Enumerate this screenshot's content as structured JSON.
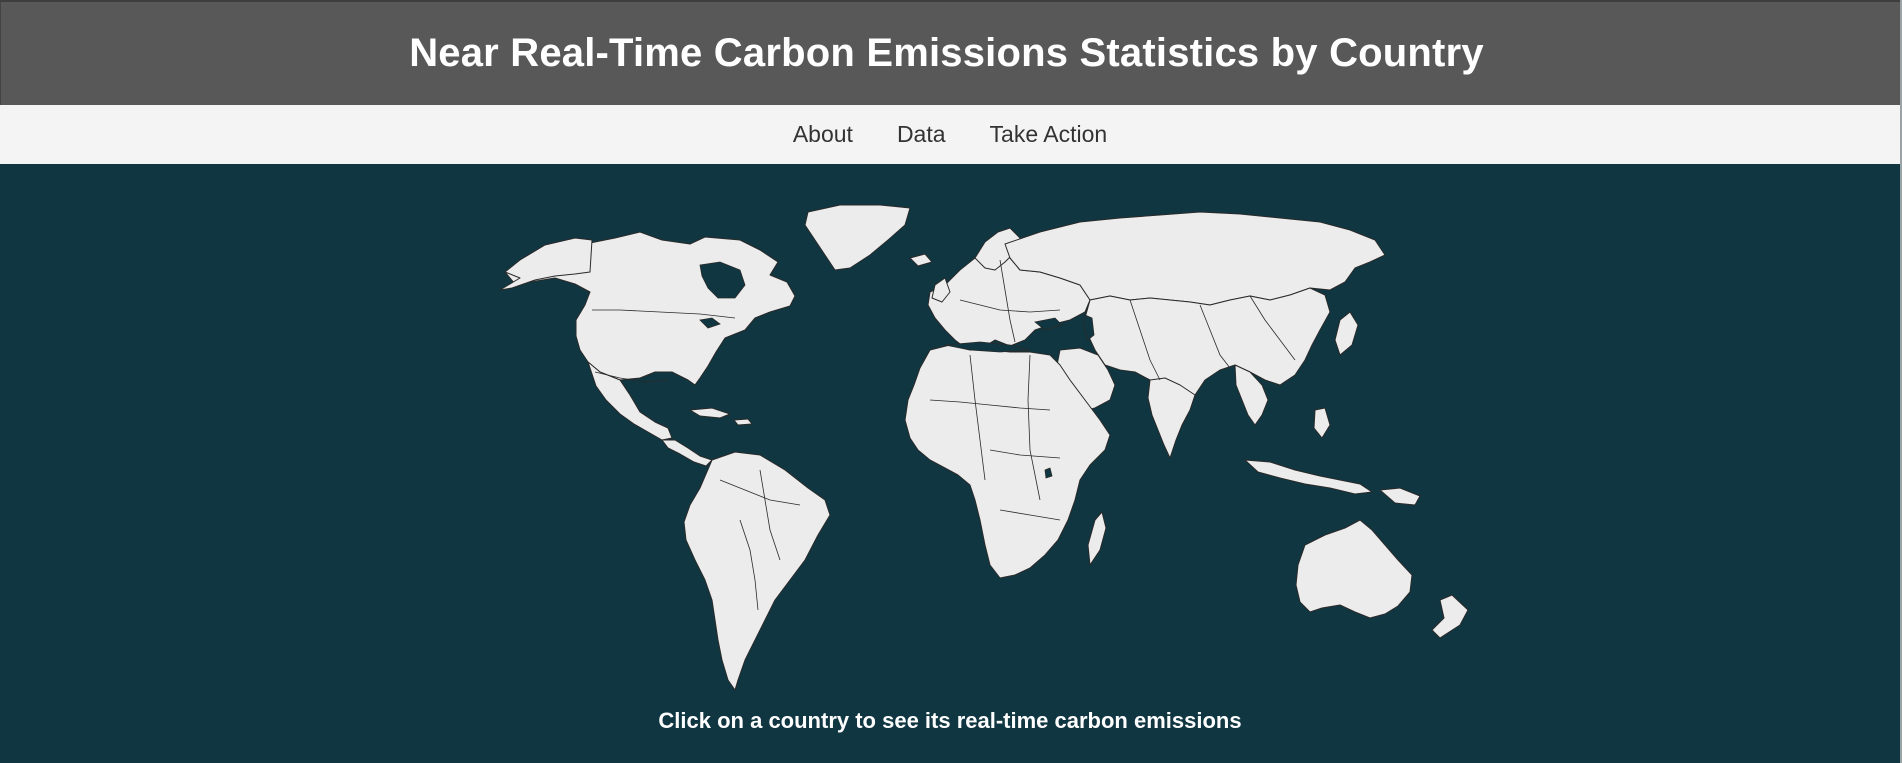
{
  "header": {
    "title": "Near Real-Time Carbon Emissions Statistics by Country"
  },
  "nav": {
    "items": [
      {
        "label": "About",
        "name": "nav-about"
      },
      {
        "label": "Data",
        "name": "nav-data"
      },
      {
        "label": "Take Action",
        "name": "nav-take-action"
      }
    ]
  },
  "map": {
    "caption": "Click on a country to see its real-time carbon emissions",
    "ocean_color": "#0f3641",
    "land_color": "#ececec",
    "border_color": "#2a2a2a"
  },
  "colors": {
    "header_bg": "#585858",
    "nav_bg": "#f4f4f4",
    "text_light": "#ffffff",
    "text_dark": "#333333"
  }
}
